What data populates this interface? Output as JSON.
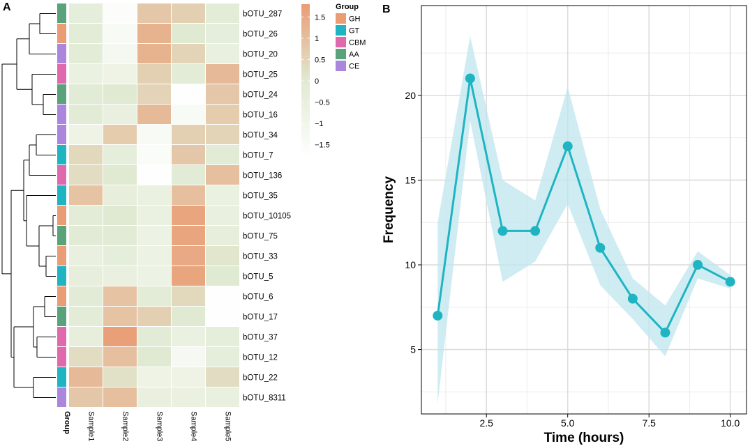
{
  "panels": {
    "a": "A",
    "b": "B"
  },
  "chart_data": [
    {
      "type": "heatmap",
      "rows": [
        "bOTU_287",
        "bOTU_26",
        "bOTU_20",
        "bOTU_25",
        "bOTU_24",
        "bOTU_16",
        "bOTU_34",
        "bOTU_7",
        "bOTU_136",
        "bOTU_35",
        "bOTU_10105",
        "bOTU_75",
        "bOTU_33",
        "bOTU_5",
        "bOTU_6",
        "bOTU_17",
        "bOTU_37",
        "bOTU_12",
        "bOTU_22",
        "bOTU_8311"
      ],
      "columns": [
        "Sample1",
        "Sample2",
        "Sample3",
        "Sample4",
        "Sample5"
      ],
      "values": [
        [
          -0.3,
          -1.6,
          0.8,
          0.6,
          -0.2
        ],
        [
          -0.2,
          -1.4,
          1.3,
          0.0,
          -0.3
        ],
        [
          -0.2,
          -1.2,
          1.3,
          0.5,
          -0.5
        ],
        [
          -0.6,
          -0.8,
          0.6,
          -0.2,
          1.1
        ],
        [
          -0.1,
          0.0,
          0.5,
          -1.7,
          0.8
        ],
        [
          -0.1,
          -0.5,
          1.1,
          -1.4,
          0.7
        ],
        [
          -0.8,
          0.7,
          -1.4,
          0.6,
          0.5
        ],
        [
          0.4,
          -0.3,
          -1.5,
          0.8,
          -0.1
        ],
        [
          0.3,
          0.0,
          -1.7,
          -0.1,
          1.0
        ],
        [
          0.9,
          -0.4,
          -0.6,
          1.0,
          -0.6
        ],
        [
          -0.2,
          0.0,
          -0.6,
          1.6,
          -0.5
        ],
        [
          -0.1,
          -0.1,
          -0.7,
          1.6,
          -0.4
        ],
        [
          -0.5,
          -0.3,
          -0.7,
          1.5,
          0.1
        ],
        [
          -0.4,
          -0.5,
          -0.7,
          1.6,
          0.0
        ],
        [
          -0.1,
          0.9,
          -0.2,
          0.4,
          -1.7
        ],
        [
          -0.2,
          0.9,
          0.6,
          0.0,
          -1.7
        ],
        [
          -0.4,
          1.7,
          -0.1,
          -0.6,
          -0.3
        ],
        [
          0.3,
          1.0,
          0.0,
          -1.3,
          -0.3
        ],
        [
          1.1,
          0.2,
          -0.8,
          -0.8,
          0.3
        ],
        [
          0.8,
          1.0,
          -0.5,
          -0.6,
          -0.5
        ]
      ],
      "row_group": [
        "AA",
        "GH",
        "CE",
        "CBM",
        "AA",
        "CE",
        "CE",
        "GT",
        "CBM",
        "GT",
        "GH",
        "AA",
        "GH",
        "GT",
        "GH",
        "AA",
        "CBM",
        "CBM",
        "GT",
        "CE"
      ],
      "group_axis_label": "Group",
      "legend": {
        "title": "Group",
        "entries": [
          {
            "label": "GH",
            "color": "#ea9c74"
          },
          {
            "label": "GT",
            "color": "#1eb4c2"
          },
          {
            "label": "CBM",
            "color": "#e069ae"
          },
          {
            "label": "AA",
            "color": "#5aa37a"
          },
          {
            "label": "CE",
            "color": "#aa86dc"
          }
        ]
      },
      "color_scale": {
        "range": [
          -1.8,
          1.8
        ],
        "low": "#ffffff",
        "mid": "#e0ead2",
        "high": "#ea9c74",
        "ticks": [
          1.5,
          1,
          0.5,
          0,
          -0.5,
          -1,
          -1.5
        ],
        "tick_labels": [
          "1.5",
          "1",
          "0.5",
          "0",
          "−0.5",
          "−1",
          "−1.5"
        ]
      },
      "dendrogram": "hierarchical clustering of rows"
    },
    {
      "type": "line",
      "x": [
        1,
        2,
        3,
        4,
        5,
        6,
        7,
        8,
        9,
        10
      ],
      "y": [
        7,
        21,
        12,
        12,
        17,
        11,
        8,
        6,
        10,
        9
      ],
      "ci_upper": [
        12.5,
        23.5,
        15,
        13.8,
        20.5,
        13.3,
        9.2,
        7.6,
        10.8,
        9.4
      ],
      "ci_lower": [
        1.8,
        18.5,
        9,
        10.2,
        13.6,
        8.8,
        6.8,
        4.6,
        9.2,
        8.6
      ],
      "xlabel": "Time (hours)",
      "ylabel": "Frequency",
      "xlim": [
        0.5,
        10.5
      ],
      "ylim": [
        1.2,
        25.3
      ],
      "x_ticks": [
        2.5,
        5.0,
        7.5,
        10.0
      ],
      "x_tick_labels": [
        "2.5",
        "5.0",
        "7.5",
        "10.0"
      ],
      "y_ticks": [
        5,
        10,
        15,
        20
      ],
      "y_tick_labels": [
        "5",
        "10",
        "15",
        "20"
      ],
      "line_color": "#1eb4c2",
      "ribbon_color": "#bfe6ef",
      "grid": true
    }
  ]
}
